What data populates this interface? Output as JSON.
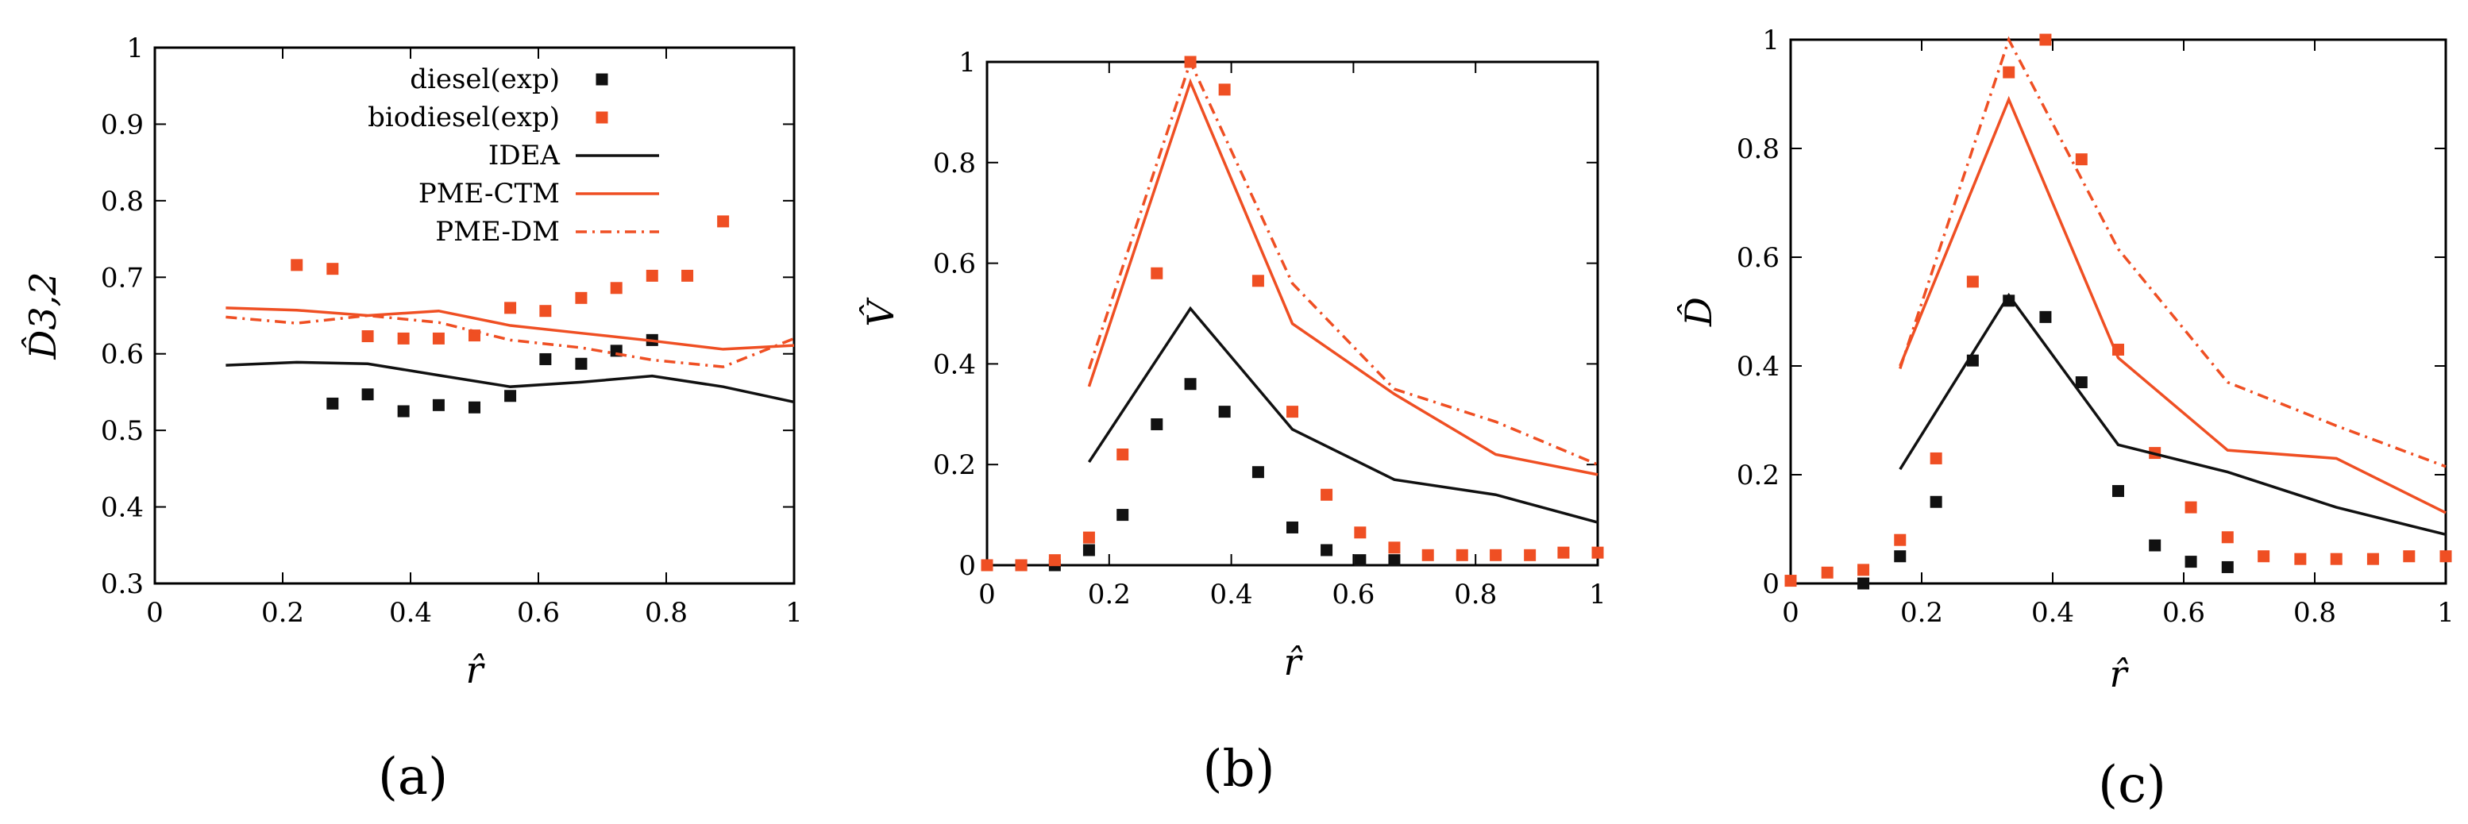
{
  "colors": {
    "diesel": "#111111",
    "biodiesel": "#ef4f23",
    "IDEA": "#111111",
    "PME-CTM": "#ef4f23",
    "PME-DM": "#ef4f23"
  },
  "chart_data": [
    {
      "type": "line",
      "panel_label": "(a)",
      "xlabel": "r̂",
      "ylabel": "D̂3,2",
      "xlim": [
        0,
        1
      ],
      "ylim": [
        0.3,
        1
      ],
      "xticks": [
        "0",
        "0.2",
        "0.4",
        "0.6",
        "0.8",
        "1"
      ],
      "yticks": [
        "0.3",
        "0.4",
        "0.5",
        "0.6",
        "0.7",
        "0.8",
        "0.9",
        "1"
      ],
      "grid": false,
      "legend_position": "top-right",
      "series": [
        {
          "name": "diesel(exp)",
          "kind": "markers",
          "color": "#111111",
          "x": [
            0.278,
            0.333,
            0.389,
            0.444,
            0.5,
            0.556,
            0.611,
            0.667,
            0.722,
            0.778
          ],
          "y": [
            0.535,
            0.547,
            0.525,
            0.533,
            0.53,
            0.545,
            0.593,
            0.587,
            0.604,
            0.618
          ]
        },
        {
          "name": "biodiesel(exp)",
          "kind": "markers",
          "color": "#ef4f23",
          "x": [
            0.222,
            0.278,
            0.333,
            0.389,
            0.444,
            0.5,
            0.556,
            0.611,
            0.667,
            0.722,
            0.778,
            0.833,
            0.889
          ],
          "y": [
            0.716,
            0.711,
            0.623,
            0.62,
            0.62,
            0.624,
            0.66,
            0.656,
            0.673,
            0.686,
            0.702,
            0.702,
            0.773
          ]
        },
        {
          "name": "IDEA",
          "kind": "line",
          "dash": "solid",
          "color": "#111111",
          "x": [
            0.111,
            0.222,
            0.333,
            0.444,
            0.556,
            0.667,
            0.778,
            0.889,
            1.0
          ],
          "y": [
            0.585,
            0.589,
            0.587,
            0.572,
            0.557,
            0.563,
            0.571,
            0.557,
            0.537
          ]
        },
        {
          "name": "PME-CTM",
          "kind": "line",
          "dash": "solid",
          "color": "#ef4f23",
          "x": [
            0.111,
            0.222,
            0.333,
            0.444,
            0.556,
            0.667,
            0.778,
            0.889,
            1.0
          ],
          "y": [
            0.66,
            0.657,
            0.65,
            0.656,
            0.637,
            0.627,
            0.617,
            0.606,
            0.611
          ]
        },
        {
          "name": "PME-DM",
          "kind": "line",
          "dash": "dashdot",
          "color": "#ef4f23",
          "x": [
            0.111,
            0.222,
            0.333,
            0.444,
            0.556,
            0.667,
            0.778,
            0.889,
            1.0
          ],
          "y": [
            0.648,
            0.64,
            0.65,
            0.641,
            0.618,
            0.608,
            0.592,
            0.583,
            0.62
          ]
        }
      ]
    },
    {
      "type": "line",
      "panel_label": "(b)",
      "xlabel": "r̂",
      "ylabel": "V̂",
      "xlim": [
        0,
        1
      ],
      "ylim": [
        0,
        1
      ],
      "xticks": [
        "0",
        "0.2",
        "0.4",
        "0.6",
        "0.8",
        "1"
      ],
      "yticks": [
        "0",
        "0.2",
        "0.4",
        "0.6",
        "0.8",
        "1"
      ],
      "grid": false,
      "series": [
        {
          "name": "diesel(exp)",
          "kind": "markers",
          "color": "#111111",
          "x": [
            0.0,
            0.056,
            0.111,
            0.167,
            0.222,
            0.278,
            0.333,
            0.389,
            0.444,
            0.5,
            0.556,
            0.611,
            0.667
          ],
          "y": [
            0.0,
            0.0,
            0.0,
            0.03,
            0.1,
            0.28,
            0.36,
            0.305,
            0.185,
            0.075,
            0.03,
            0.01,
            0.01
          ]
        },
        {
          "name": "biodiesel(exp)",
          "kind": "markers",
          "color": "#ef4f23",
          "x": [
            0.0,
            0.056,
            0.111,
            0.167,
            0.222,
            0.278,
            0.333,
            0.389,
            0.444,
            0.5,
            0.556,
            0.611,
            0.667,
            0.722,
            0.778,
            0.833,
            0.889,
            0.944,
            1.0
          ],
          "y": [
            0.0,
            0.0,
            0.01,
            0.055,
            0.22,
            0.58,
            1.0,
            0.945,
            0.565,
            0.305,
            0.14,
            0.065,
            0.035,
            0.02,
            0.02,
            0.02,
            0.02,
            0.025,
            0.025
          ]
        },
        {
          "name": "IDEA",
          "kind": "line",
          "dash": "solid",
          "color": "#111111",
          "x": [
            0.167,
            0.333,
            0.5,
            0.667,
            0.833,
            1.0
          ],
          "y": [
            0.205,
            0.51,
            0.27,
            0.17,
            0.14,
            0.085
          ]
        },
        {
          "name": "PME-CTM",
          "kind": "line",
          "dash": "solid",
          "color": "#ef4f23",
          "x": [
            0.167,
            0.333,
            0.5,
            0.667,
            0.833,
            1.0
          ],
          "y": [
            0.355,
            0.96,
            0.48,
            0.34,
            0.22,
            0.18
          ]
        },
        {
          "name": "PME-DM",
          "kind": "line",
          "dash": "dashdot",
          "color": "#ef4f23",
          "x": [
            0.167,
            0.333,
            0.5,
            0.667,
            0.833,
            1.0
          ],
          "y": [
            0.39,
            1.0,
            0.56,
            0.35,
            0.285,
            0.2
          ]
        }
      ]
    },
    {
      "type": "line",
      "panel_label": "(c)",
      "xlabel": "r̂",
      "ylabel": "D̂",
      "xlim": [
        0,
        1
      ],
      "ylim": [
        0,
        1
      ],
      "xticks": [
        "0",
        "0.2",
        "0.4",
        "0.6",
        "0.8",
        "1"
      ],
      "yticks": [
        "0",
        "0.2",
        "0.4",
        "0.6",
        "0.8",
        "1"
      ],
      "grid": false,
      "series": [
        {
          "name": "diesel(exp)",
          "kind": "markers",
          "color": "#111111",
          "x": [
            0.111,
            0.167,
            0.222,
            0.278,
            0.333,
            0.389,
            0.444,
            0.5,
            0.556,
            0.611,
            0.667
          ],
          "y": [
            0.0,
            0.05,
            0.15,
            0.41,
            0.52,
            0.49,
            0.37,
            0.17,
            0.07,
            0.04,
            0.03
          ]
        },
        {
          "name": "biodiesel(exp)",
          "kind": "markers",
          "color": "#ef4f23",
          "x": [
            0.0,
            0.056,
            0.111,
            0.167,
            0.222,
            0.278,
            0.333,
            0.389,
            0.444,
            0.5,
            0.556,
            0.611,
            0.667,
            0.722,
            0.778,
            0.833,
            0.889,
            0.944,
            1.0
          ],
          "y": [
            0.005,
            0.02,
            0.025,
            0.08,
            0.23,
            0.555,
            0.94,
            1.0,
            0.78,
            0.43,
            0.24,
            0.14,
            0.085,
            0.05,
            0.045,
            0.045,
            0.045,
            0.05,
            0.05
          ]
        },
        {
          "name": "IDEA",
          "kind": "line",
          "dash": "solid",
          "color": "#111111",
          "x": [
            0.167,
            0.333,
            0.5,
            0.667,
            0.833,
            1.0
          ],
          "y": [
            0.21,
            0.53,
            0.255,
            0.205,
            0.14,
            0.09
          ]
        },
        {
          "name": "PME-CTM",
          "kind": "line",
          "dash": "solid",
          "color": "#ef4f23",
          "x": [
            0.167,
            0.333,
            0.5,
            0.667,
            0.833,
            1.0
          ],
          "y": [
            0.4,
            0.89,
            0.415,
            0.245,
            0.23,
            0.13
          ]
        },
        {
          "name": "PME-DM",
          "kind": "line",
          "dash": "dashdot",
          "color": "#ef4f23",
          "x": [
            0.167,
            0.333,
            0.5,
            0.667,
            0.833,
            1.0
          ],
          "y": [
            0.395,
            1.0,
            0.615,
            0.37,
            0.29,
            0.215
          ]
        }
      ]
    }
  ]
}
